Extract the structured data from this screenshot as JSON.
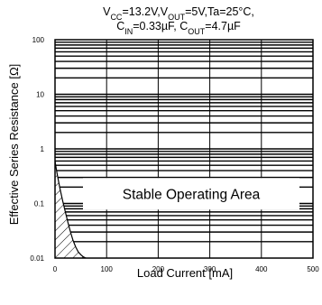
{
  "chart_data": {
    "type": "area",
    "title_line1": [
      {
        "t": "V"
      },
      {
        "t": "CC",
        "sub": true
      },
      {
        "t": "=13.2V,V"
      },
      {
        "t": "OUT",
        "sub": true
      },
      {
        "t": "=5V,Ta=25°C,"
      }
    ],
    "title_line2": [
      {
        "t": "C"
      },
      {
        "t": "IN",
        "sub": true
      },
      {
        "t": "=0.33µF, C"
      },
      {
        "t": "OUT",
        "sub": true
      },
      {
        "t": "=4.7µF"
      }
    ],
    "xlabel": "Load Current [mA]",
    "ylabel": "Effective Series Resistance [Ω]",
    "xlim": [
      0,
      500
    ],
    "ylim": [
      0.01,
      100
    ],
    "yscale": "log",
    "x_ticks": [
      "0",
      "100",
      "200",
      "300",
      "400",
      "500"
    ],
    "y_ticks": [
      "0.01",
      "0.1",
      "1",
      "10",
      "100"
    ],
    "grid": true,
    "annotation": "Stable Operating Area",
    "unstable_boundary": {
      "x": [
        0,
        3,
        6,
        10,
        15,
        20,
        25,
        30,
        35,
        40,
        45,
        50,
        55,
        60
      ],
      "y": [
        0.6,
        0.4,
        0.28,
        0.18,
        0.11,
        0.07,
        0.045,
        0.03,
        0.021,
        0.016,
        0.013,
        0.0115,
        0.0105,
        0.01
      ]
    }
  }
}
